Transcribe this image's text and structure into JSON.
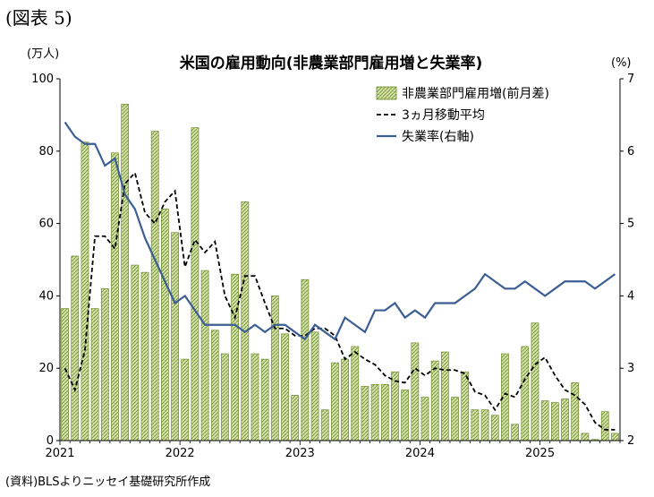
{
  "figure_label": "(図表 5)",
  "source_note": "(資料)BLSよりニッセイ基礎研究所作成",
  "colors": {
    "bar_fill": "#d3e0a6",
    "bar_stroke": "#6e8d2e",
    "avg_line": "#000000",
    "rate_line": "#3c5f93",
    "axis": "#000000"
  },
  "chart_data": {
    "type": "bar",
    "title": "米国の雇用動向(非農業部門雇用増と失業率)",
    "y_left_unit": "(万人)",
    "y_right_unit": "(%)",
    "ylim_left": [
      0,
      100
    ],
    "ylim_right": [
      2,
      7
    ],
    "y_left_ticks": [
      "0",
      "20",
      "40",
      "60",
      "80",
      "100"
    ],
    "y_right_ticks": [
      "2",
      "3",
      "4",
      "5",
      "6",
      "7"
    ],
    "x_tick_labels": [
      "2021",
      "2022",
      "2023",
      "2024",
      "2025"
    ],
    "months": [
      "2021-01",
      "2021-02",
      "2021-03",
      "2021-04",
      "2021-05",
      "2021-06",
      "2021-07",
      "2021-08",
      "2021-09",
      "2021-10",
      "2021-11",
      "2021-12",
      "2022-01",
      "2022-02",
      "2022-03",
      "2022-04",
      "2022-05",
      "2022-06",
      "2022-07",
      "2022-08",
      "2022-09",
      "2022-10",
      "2022-11",
      "2022-12",
      "2023-01",
      "2023-02",
      "2023-03",
      "2023-04",
      "2023-05",
      "2023-06",
      "2023-07",
      "2023-08",
      "2023-09",
      "2023-10",
      "2023-11",
      "2023-12",
      "2024-01",
      "2024-02",
      "2024-03",
      "2024-04",
      "2024-05",
      "2024-06",
      "2024-07",
      "2024-08",
      "2024-09",
      "2024-10",
      "2024-11",
      "2024-12",
      "2025-01",
      "2025-02",
      "2025-03",
      "2025-04",
      "2025-05",
      "2025-06",
      "2025-07",
      "2025-08"
    ],
    "grid": false,
    "legend_position": "top-right",
    "series": [
      {
        "name": "非農業部門雇用増(前月差)",
        "type": "bar",
        "axis": "left",
        "values": [
          36.5,
          51,
          82.5,
          36.5,
          42,
          79.5,
          93,
          48.5,
          46.5,
          85.5,
          64,
          57.5,
          22.5,
          86.5,
          47,
          30.5,
          24,
          46,
          66,
          24,
          22.5,
          40,
          29.5,
          12.5,
          44.5,
          30,
          8.5,
          21.5,
          22.5,
          26,
          15,
          15.5,
          15.5,
          19,
          14,
          27,
          12,
          22,
          24.5,
          12,
          19,
          8.5,
          8.5,
          7,
          24,
          4.5,
          26,
          32.5,
          11,
          10.5,
          11.5,
          16,
          2,
          0.3,
          8,
          2
        ]
      },
      {
        "name": "3ヵ月移動平均",
        "type": "line",
        "style": "dashed",
        "axis": "left",
        "values": [
          20,
          14,
          25,
          56.5,
          56.5,
          53,
          71,
          74,
          63,
          60,
          66,
          69,
          48,
          55.5,
          52,
          55,
          40,
          34,
          45.5,
          45.5,
          38,
          31,
          31,
          29,
          29,
          31,
          31,
          29,
          22.5,
          24.5,
          22.5,
          21,
          18,
          16.5,
          16,
          20,
          18,
          20,
          19.5,
          19.5,
          18.5,
          13.5,
          12.5,
          8.5,
          13,
          12,
          17,
          21,
          23,
          18,
          14,
          12.5,
          10,
          5,
          3,
          3
        ]
      },
      {
        "name": "失業率(右軸)",
        "type": "line",
        "style": "solid",
        "axis": "right",
        "values": [
          6.4,
          6.2,
          6.1,
          6.1,
          5.8,
          5.9,
          5.4,
          5.2,
          4.8,
          4.5,
          4.2,
          3.9,
          4.0,
          3.8,
          3.6,
          3.6,
          3.6,
          3.6,
          3.5,
          3.6,
          3.5,
          3.6,
          3.6,
          3.5,
          3.4,
          3.6,
          3.5,
          3.4,
          3.7,
          3.6,
          3.5,
          3.8,
          3.8,
          3.9,
          3.7,
          3.8,
          3.7,
          3.9,
          3.9,
          3.9,
          4.0,
          4.1,
          4.3,
          4.2,
          4.1,
          4.1,
          4.2,
          4.1,
          4.0,
          4.1,
          4.2,
          4.2,
          4.2,
          4.1,
          4.2,
          4.3
        ]
      }
    ]
  }
}
